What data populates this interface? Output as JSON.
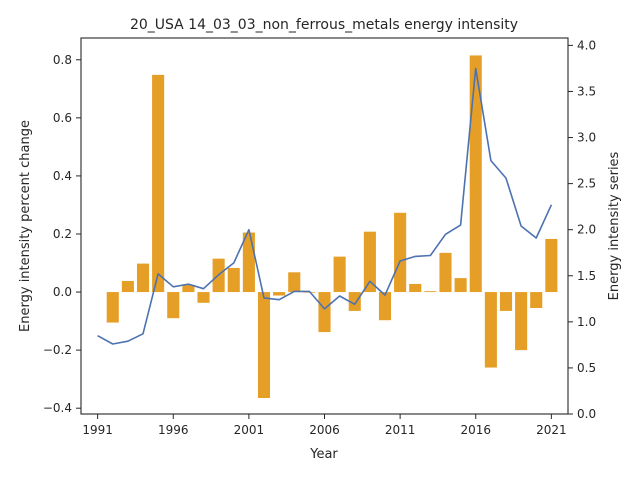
{
  "chart_data": {
    "type": "bar+line",
    "title": "20_USA 14_03_03_non_ferrous_metals energy intensity",
    "xlabel": "Year",
    "ylabel_left": "Energy intensity percent change",
    "ylabel_right": "Energy intensity series",
    "x": [
      1991,
      1992,
      1993,
      1994,
      1995,
      1996,
      1997,
      1998,
      1999,
      2000,
      2001,
      2002,
      2003,
      2004,
      2005,
      2006,
      2007,
      2008,
      2009,
      2010,
      2011,
      2012,
      2013,
      2014,
      2015,
      2016,
      2017,
      2018,
      2019,
      2020,
      2021
    ],
    "bar_series": {
      "values": [
        null,
        -0.105,
        0.038,
        0.098,
        0.748,
        -0.09,
        0.025,
        -0.037,
        0.115,
        0.083,
        0.205,
        -0.365,
        -0.012,
        0.068,
        0.0,
        -0.138,
        0.122,
        -0.065,
        0.208,
        -0.097,
        0.273,
        0.028,
        0.003,
        0.135,
        0.048,
        0.815,
        -0.26,
        -0.065,
        -0.2,
        -0.055,
        0.183
      ],
      "color": "#e69f26",
      "axis": "left"
    },
    "line_series": {
      "values": [
        0.85,
        0.76,
        0.79,
        0.87,
        1.52,
        1.38,
        1.41,
        1.36,
        1.51,
        1.64,
        2.0,
        1.26,
        1.24,
        1.33,
        1.33,
        1.14,
        1.28,
        1.19,
        1.44,
        1.29,
        1.66,
        1.71,
        1.72,
        1.95,
        2.05,
        3.75,
        2.75,
        2.56,
        2.04,
        1.91,
        2.27
      ],
      "color": "#4c72b0",
      "axis": "right"
    },
    "x_ticks": [
      1991,
      1996,
      2001,
      2006,
      2011,
      2016,
      2021
    ],
    "x_range": [
      1989.9,
      2022.1
    ],
    "y_left_ticks": [
      -0.4,
      -0.2,
      0.0,
      0.2,
      0.4,
      0.6,
      0.8
    ],
    "y_left_tick_labels": [
      "−0.4",
      "−0.2",
      "0.0",
      "0.2",
      "0.4",
      "0.6",
      "0.8"
    ],
    "y_left_range": [
      -0.42,
      0.875
    ],
    "y_right_ticks": [
      0.0,
      0.5,
      1.0,
      1.5,
      2.0,
      2.5,
      3.0,
      3.5,
      4.0
    ],
    "y_right_tick_labels": [
      "0.0",
      "0.5",
      "1.0",
      "1.5",
      "2.0",
      "2.5",
      "3.0",
      "3.5",
      "4.0"
    ],
    "y_right_range": [
      0.0,
      4.08
    ],
    "grid": false,
    "legend": "none"
  }
}
